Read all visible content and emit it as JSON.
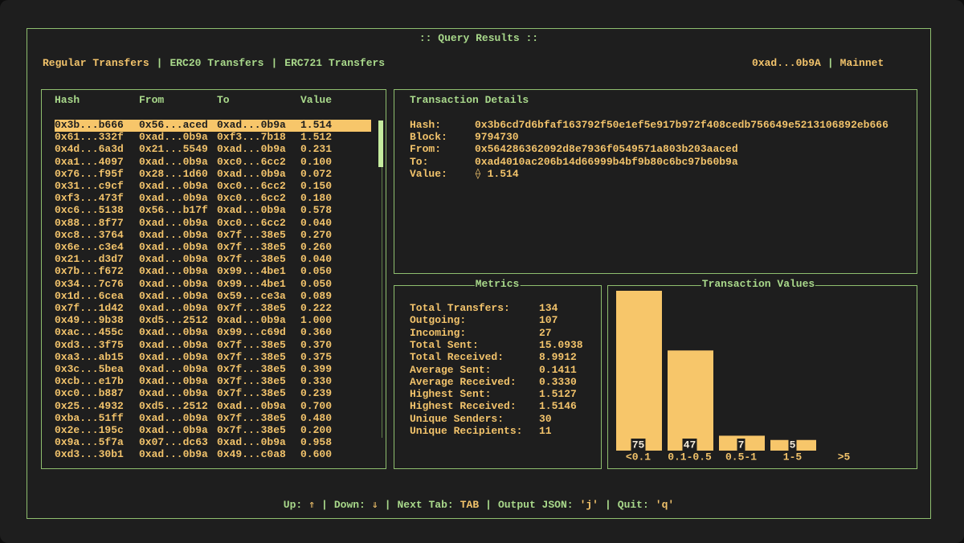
{
  "header": {
    "title": ":: Query Results ::",
    "tabs": [
      "Regular Transfers",
      "ERC20 Transfers",
      "ERC721 Transfers"
    ],
    "active_tab": 0,
    "separator": "|",
    "account": "0xad...0b9A",
    "network": "Mainnet"
  },
  "transfers": {
    "columns": [
      "Hash",
      "From",
      "To",
      "Value"
    ],
    "selected_row": 0,
    "rows": [
      [
        "0x3b...b666",
        "0x56...aced",
        "0xad...0b9a",
        "1.514"
      ],
      [
        "0x61...332f",
        "0xad...0b9a",
        "0xf3...7b18",
        "1.512"
      ],
      [
        "0x4d...6a3d",
        "0x21...5549",
        "0xad...0b9a",
        "0.231"
      ],
      [
        "0xa1...4097",
        "0xad...0b9a",
        "0xc0...6cc2",
        "0.100"
      ],
      [
        "0x76...f95f",
        "0x28...1d60",
        "0xad...0b9a",
        "0.072"
      ],
      [
        "0x31...c9cf",
        "0xad...0b9a",
        "0xc0...6cc2",
        "0.150"
      ],
      [
        "0xf3...473f",
        "0xad...0b9a",
        "0xc0...6cc2",
        "0.180"
      ],
      [
        "0xc6...5138",
        "0x56...b17f",
        "0xad...0b9a",
        "0.578"
      ],
      [
        "0x88...8f77",
        "0xad...0b9a",
        "0xc0...6cc2",
        "0.040"
      ],
      [
        "0xc8...3764",
        "0xad...0b9a",
        "0x7f...38e5",
        "0.270"
      ],
      [
        "0x6e...c3e4",
        "0xad...0b9a",
        "0x7f...38e5",
        "0.260"
      ],
      [
        "0x21...d3d7",
        "0xad...0b9a",
        "0x7f...38e5",
        "0.040"
      ],
      [
        "0x7b...f672",
        "0xad...0b9a",
        "0x99...4be1",
        "0.050"
      ],
      [
        "0x34...7c76",
        "0xad...0b9a",
        "0x99...4be1",
        "0.050"
      ],
      [
        "0x1d...6cea",
        "0xad...0b9a",
        "0x59...ce3a",
        "0.089"
      ],
      [
        "0x7f...1d42",
        "0xad...0b9a",
        "0x7f...38e5",
        "0.222"
      ],
      [
        "0x49...9b38",
        "0xd5...2512",
        "0xad...0b9a",
        "1.000"
      ],
      [
        "0xac...455c",
        "0xad...0b9a",
        "0x99...c69d",
        "0.360"
      ],
      [
        "0xd3...3f75",
        "0xad...0b9a",
        "0x7f...38e5",
        "0.370"
      ],
      [
        "0xa3...ab15",
        "0xad...0b9a",
        "0x7f...38e5",
        "0.375"
      ],
      [
        "0x3c...5bea",
        "0xad...0b9a",
        "0x7f...38e5",
        "0.399"
      ],
      [
        "0xcb...e17b",
        "0xad...0b9a",
        "0x7f...38e5",
        "0.330"
      ],
      [
        "0xc0...b887",
        "0xad...0b9a",
        "0x7f...38e5",
        "0.239"
      ],
      [
        "0x25...4932",
        "0xd5...2512",
        "0xad...0b9a",
        "0.700"
      ],
      [
        "0xba...51ff",
        "0xad...0b9a",
        "0x7f...38e5",
        "0.480"
      ],
      [
        "0x2e...195c",
        "0xad...0b9a",
        "0x7f...38e5",
        "0.200"
      ],
      [
        "0x9a...5f7a",
        "0x07...dc63",
        "0xad...0b9a",
        "0.958"
      ],
      [
        "0xd3...30b1",
        "0xad...0b9a",
        "0x49...c0a8",
        "0.600"
      ]
    ]
  },
  "details": {
    "title": "Transaction Details",
    "fields": [
      {
        "label": "Hash:",
        "value": "0x3b6cd7d6bfaf163792f50e1ef5e917b972f408cedb756649e5213106892eb666"
      },
      {
        "label": "Block:",
        "value": "9794730"
      },
      {
        "label": "From:",
        "value": "0x564286362092d8e7936f0549571a803b203aaced"
      },
      {
        "label": "To:",
        "value": "0xad4010ac206b14d66999b4bf9b80c6bc97b60b9a"
      },
      {
        "label": "Value:",
        "value": "⟠ 1.514"
      }
    ]
  },
  "metrics": {
    "title": "Metrics",
    "fields": [
      {
        "label": "Total Transfers:",
        "value": "134"
      },
      {
        "label": "Outgoing:",
        "value": "107"
      },
      {
        "label": "Incoming:",
        "value": "27"
      },
      {
        "label": "Total Sent:",
        "value": "15.0938"
      },
      {
        "label": "Total Received:",
        "value": "8.9912"
      },
      {
        "label": "Average Sent:",
        "value": "0.1411"
      },
      {
        "label": "Average Received:",
        "value": "0.3330"
      },
      {
        "label": "Highest Sent:",
        "value": "1.5127"
      },
      {
        "label": "Highest Received:",
        "value": "1.5146"
      },
      {
        "label": "Unique Senders:",
        "value": "30"
      },
      {
        "label": "Unique Recipients:",
        "value": "11"
      }
    ]
  },
  "chart_data": {
    "type": "bar",
    "title": "Transaction Values",
    "categories": [
      "<0.1",
      "0.1-0.5",
      "0.5-1",
      "1-5",
      ">5"
    ],
    "values": [
      75,
      47,
      7,
      5,
      0
    ],
    "color": "#f7c66a"
  },
  "footer": {
    "separator": "|",
    "items": [
      {
        "key": "Up:",
        "value": "⇑"
      },
      {
        "key": "Down:",
        "value": "⇓"
      },
      {
        "key": "Next Tab:",
        "value": "TAB"
      },
      {
        "key": "Output JSON:",
        "value": "'j'"
      },
      {
        "key": "Quit:",
        "value": "'q'"
      }
    ]
  }
}
